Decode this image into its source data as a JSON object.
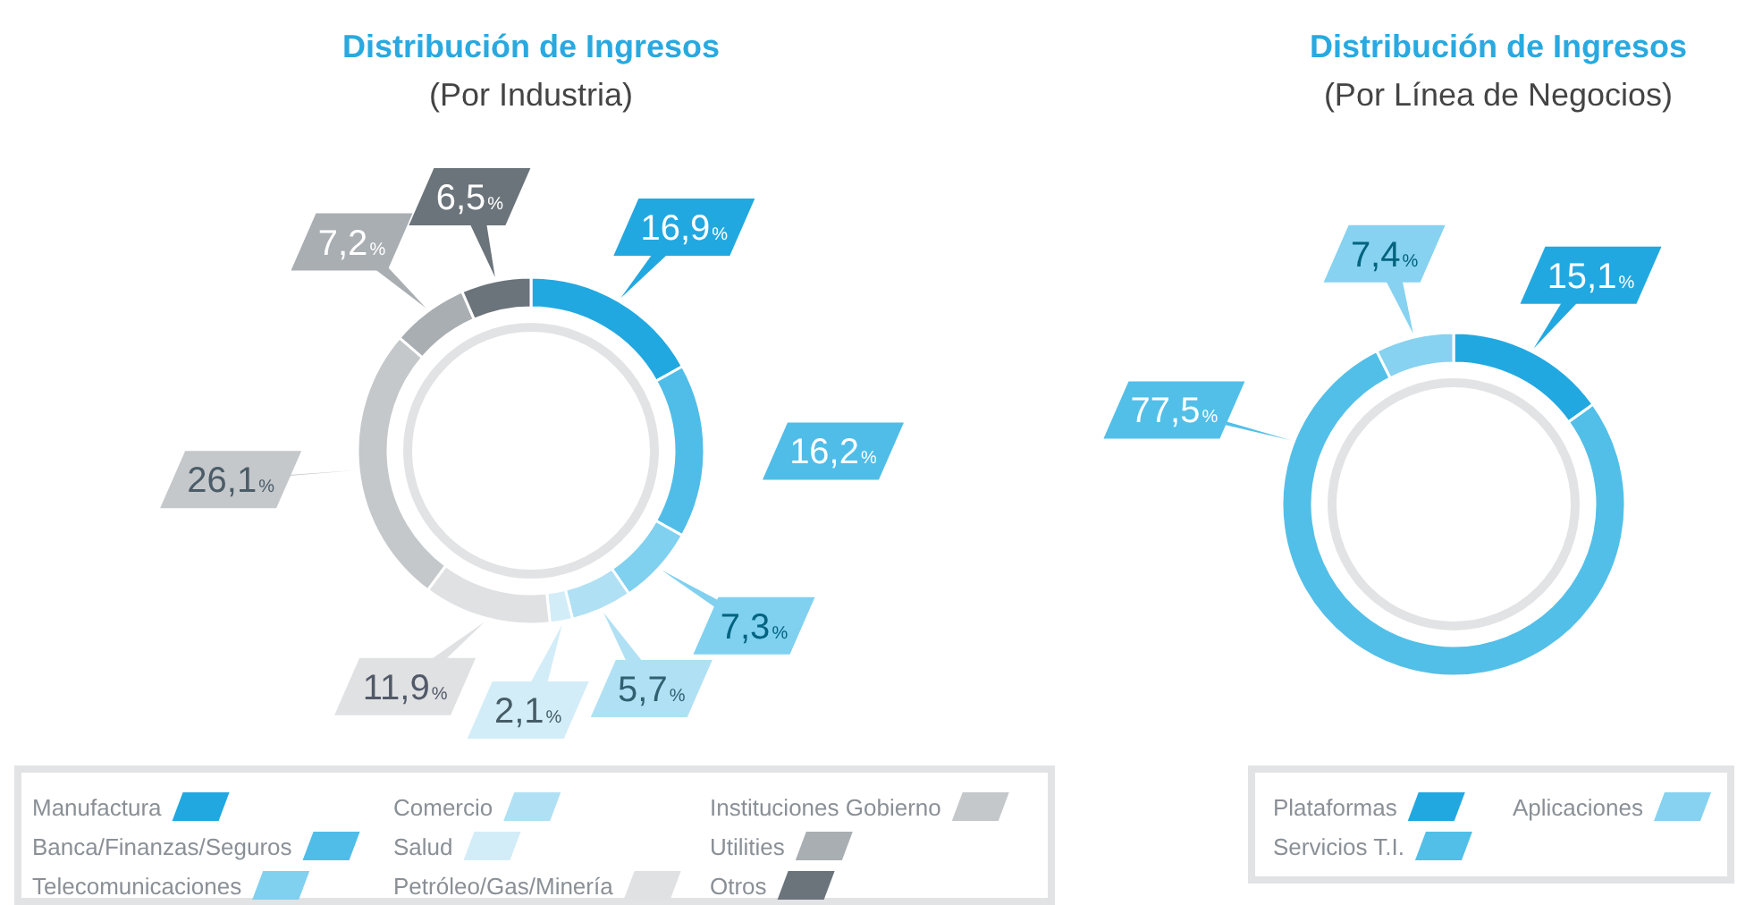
{
  "chart_data": [
    {
      "type": "donut",
      "title": "Distribución de Ingresos",
      "subtitle": "(Por Industria)",
      "legend": "bottom",
      "categories": [
        "Manufactura",
        "Banca/Finanzas/Seguros",
        "Telecomunicaciones",
        "Comercio",
        "Salud",
        "Petróleo/Gas/Minería",
        "Instituciones Gobierno",
        "Utilities",
        "Otros"
      ],
      "values": [
        16.9,
        16.2,
        7.3,
        5.7,
        2.1,
        11.9,
        26.1,
        7.2,
        6.5
      ],
      "colors": [
        "#22a8e0",
        "#4fbde8",
        "#80d0f0",
        "#b0e0f3",
        "#d3edf8",
        "#e0e1e3",
        "#c4c8cb",
        "#a9aeb2",
        "#6b747b"
      ],
      "value_labels": [
        "16,9%",
        "16,2%",
        "7,3%",
        "5,7%",
        "2,1%",
        "11,9%",
        "26,1%",
        "7,2%",
        "6,5%"
      ]
    },
    {
      "type": "donut",
      "title": "Distribución de Ingresos",
      "subtitle": "(Por Línea de Negocios)",
      "legend": "bottom",
      "categories": [
        "Plataformas",
        "Servicios T.I.",
        "Aplicaciones"
      ],
      "values": [
        15.1,
        77.5,
        7.4
      ],
      "colors": [
        "#22a8e0",
        "#52bfe8",
        "#86d2f0"
      ],
      "value_labels": [
        "15,1%",
        "77,5%",
        "7,4%"
      ]
    }
  ]
}
